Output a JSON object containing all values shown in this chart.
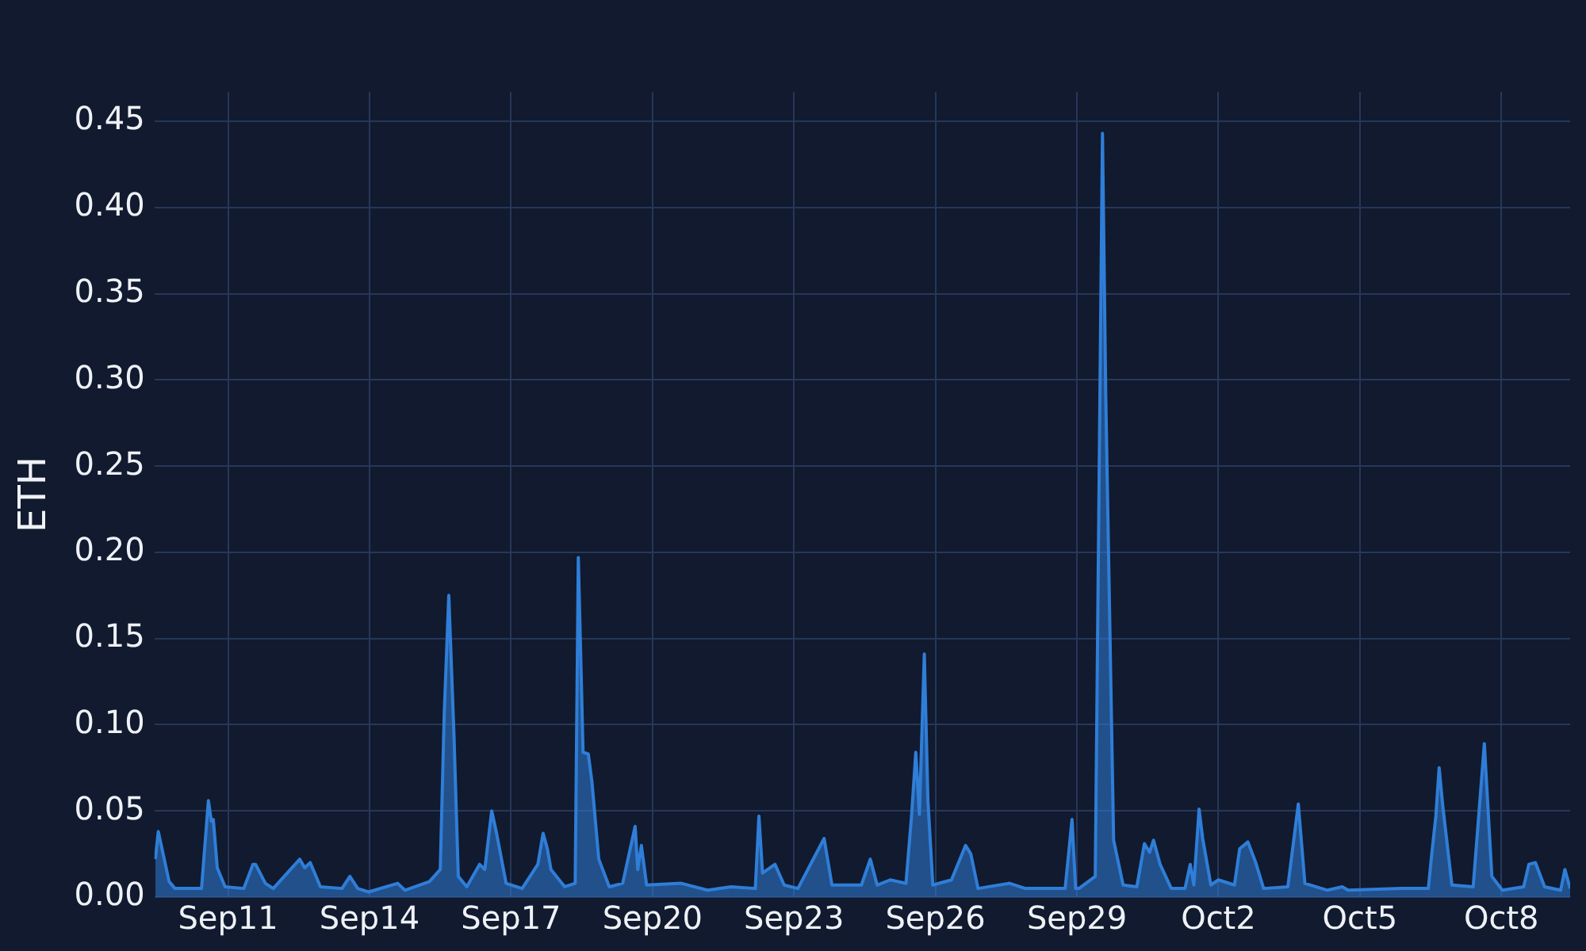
{
  "chart_data": {
    "type": "area",
    "ylabel": "ETH",
    "grid": true,
    "legend": false,
    "marker": "none",
    "xlim": [
      "--09-09T10:30",
      "--10-09T11:00"
    ],
    "xticks": [
      {
        "value": "--09-11",
        "label": "Sep11"
      },
      {
        "value": "--09-14",
        "label": "Sep14"
      },
      {
        "value": "--09-17",
        "label": "Sep17"
      },
      {
        "value": "--09-20",
        "label": "Sep20"
      },
      {
        "value": "--09-23",
        "label": "Sep23"
      },
      {
        "value": "--09-26",
        "label": "Sep26"
      },
      {
        "value": "--09-29",
        "label": "Sep29"
      },
      {
        "value": "--10-02",
        "label": "Oct2"
      },
      {
        "value": "--10-05",
        "label": "Oct5"
      },
      {
        "value": "--10-08",
        "label": "Oct8"
      }
    ],
    "ylim": [
      0,
      0.467
    ],
    "yticks": [
      {
        "value": 0,
        "label": "0.00"
      },
      {
        "value": 0.05,
        "label": "0.05"
      },
      {
        "value": 0.1,
        "label": "0.10"
      },
      {
        "value": 0.15,
        "label": "0.15"
      },
      {
        "value": 0.2,
        "label": "0.20"
      },
      {
        "value": 0.25,
        "label": "0.25"
      },
      {
        "value": 0.3,
        "label": "0.30"
      },
      {
        "value": 0.35,
        "label": "0.35"
      },
      {
        "value": 0.4,
        "label": "0.40"
      },
      {
        "value": 0.45,
        "label": "0.45"
      }
    ],
    "series": [
      {
        "color": "#2f7ed8",
        "x": [
          "--09-09T11:00",
          "--09-09T12:30",
          "--09-09T18:00",
          "--09-09T21:00",
          "--09-10T10:30",
          "--09-10T14:00",
          "--09-10T15:30",
          "--09-10T16:30",
          "--09-10T18:30",
          "--09-10T22:30",
          "--09-11T08:00",
          "--09-11T12:40",
          "--09-11T14:00",
          "--09-11T19:00",
          "--09-11T23:00",
          "--09-12T12:30",
          "--09-12T15:00",
          "--09-12T17:50",
          "--09-12T23:00",
          "--09-13T10:00",
          "--09-13T14:00",
          "--09-13T18:00",
          "--09-13T23:30",
          "--09-14T14:20",
          "--09-14T18:00",
          "--09-15T06:30",
          "--09-15T12:00",
          "--09-15T14:00",
          "--09-15T16:20",
          "--09-15T19:00",
          "--09-15T21:10",
          "--09-16T01:30",
          "--09-16T08:00",
          "--09-16T10:40",
          "--09-16T14:10",
          "--09-16T16:40",
          "--09-16T21:30",
          "--09-17T05:40",
          "--09-17T13:40",
          "--09-17T16:20",
          "--09-17T18:30",
          "--09-17T20:20",
          "--09-18T03:20",
          "--09-18T08:40",
          "--09-18T10:15",
          "--09-18T12:40",
          "--09-18T15:20",
          "--09-18T17:10",
          "--09-18T20:40",
          "--09-19T02:00",
          "--09-19T08:50",
          "--09-19T15:10",
          "--09-19T16:30",
          "--09-19T18:20",
          "--09-19T21:00",
          "--09-20T14:40",
          "--09-21T04:00",
          "--09-21T16:00",
          "--09-22T04:20",
          "--09-22T06:10",
          "--09-22T08:00",
          "--09-22T14:20",
          "--09-22T19:00",
          "--09-23T02:00",
          "--09-23T15:20",
          "--09-23T19:20",
          "--09-24T10:20",
          "--09-24T14:50",
          "--09-24T18:20",
          "--09-25T01:00",
          "--09-25T09:00",
          "--09-25T11:50",
          "--09-25T14:00",
          "--09-25T15:50",
          "--09-25T18:20",
          "--09-25T20:10",
          "--09-25T22:40",
          "--09-26T08:10",
          "--09-26T15:20",
          "--09-26T18:00",
          "--09-26T21:40",
          "--09-27T13:40",
          "--09-27T21:50",
          "--09-28T18:00",
          "--09-28T21:30",
          "--09-28T23:20",
          "--09-29T01:00",
          "--09-29T09:20",
          "--09-29T13:00",
          "--09-29T14:40",
          "--09-29T18:40",
          "--09-29T23:30",
          "--09-30T06:30",
          "--09-30T10:20",
          "--09-30T13:00",
          "--09-30T15:00",
          "--09-30T18:20",
          "--10-01T00:00",
          "--10-01T07:00",
          "--10-01T09:40",
          "--10-01T11:30",
          "--10-01T14:10",
          "--10-01T16:00",
          "--10-01T20:10",
          "--10-02T00:00",
          "--10-02T08:10",
          "--10-02T10:50",
          "--10-02T15:00",
          "--10-02T19:00",
          "--10-02T23:00",
          "--10-03T11:20",
          "--10-03T16:40",
          "--10-03T20:00",
          "--10-04T07:30",
          "--10-04T15:00",
          "--10-04T18:00",
          "--10-05T21:10",
          "--10-06T10:50",
          "--10-06T12:40",
          "--10-06T14:40",
          "--10-06T16:20",
          "--10-06T18:10",
          "--10-06T22:50",
          "--10-07T09:40",
          "--10-07T15:20",
          "--10-07T19:10",
          "--10-08T00:30",
          "--10-08T11:20",
          "--10-08T14:00",
          "--10-08T17:20",
          "--10-08T22:00",
          "--10-09T06:10",
          "--10-09T08:20",
          "--10-09T11:00"
        ],
        "values": [
          0.022,
          0.038,
          0.009,
          0.005,
          0.005,
          0.056,
          0.044,
          0.045,
          0.017,
          0.006,
          0.005,
          0.019,
          0.019,
          0.008,
          0.005,
          0.022,
          0.017,
          0.02,
          0.006,
          0.005,
          0.012,
          0.005,
          0.003,
          0.008,
          0.004,
          0.009,
          0.016,
          0.106,
          0.175,
          0.093,
          0.012,
          0.006,
          0.019,
          0.016,
          0.05,
          0.037,
          0.008,
          0.005,
          0.019,
          0.037,
          0.028,
          0.016,
          0.006,
          0.008,
          0.197,
          0.084,
          0.083,
          0.067,
          0.022,
          0.006,
          0.008,
          0.041,
          0.016,
          0.03,
          0.007,
          0.008,
          0.004,
          0.006,
          0.005,
          0.047,
          0.014,
          0.019,
          0.007,
          0.005,
          0.034,
          0.007,
          0.007,
          0.022,
          0.007,
          0.01,
          0.008,
          0.047,
          0.084,
          0.048,
          0.141,
          0.056,
          0.007,
          0.01,
          0.03,
          0.025,
          0.005,
          0.008,
          0.005,
          0.005,
          0.045,
          0.005,
          0.005,
          0.012,
          0.443,
          0.291,
          0.033,
          0.007,
          0.006,
          0.031,
          0.026,
          0.033,
          0.019,
          0.005,
          0.005,
          0.019,
          0.007,
          0.051,
          0.034,
          0.007,
          0.01,
          0.007,
          0.028,
          0.032,
          0.02,
          0.005,
          0.006,
          0.054,
          0.008,
          0.004,
          0.006,
          0.004,
          0.005,
          0.005,
          0.026,
          0.047,
          0.075,
          0.053,
          0.007,
          0.006,
          0.089,
          0.012,
          0.004,
          0.006,
          0.019,
          0.02,
          0.006,
          0.004,
          0.016,
          0.005
        ]
      }
    ]
  }
}
